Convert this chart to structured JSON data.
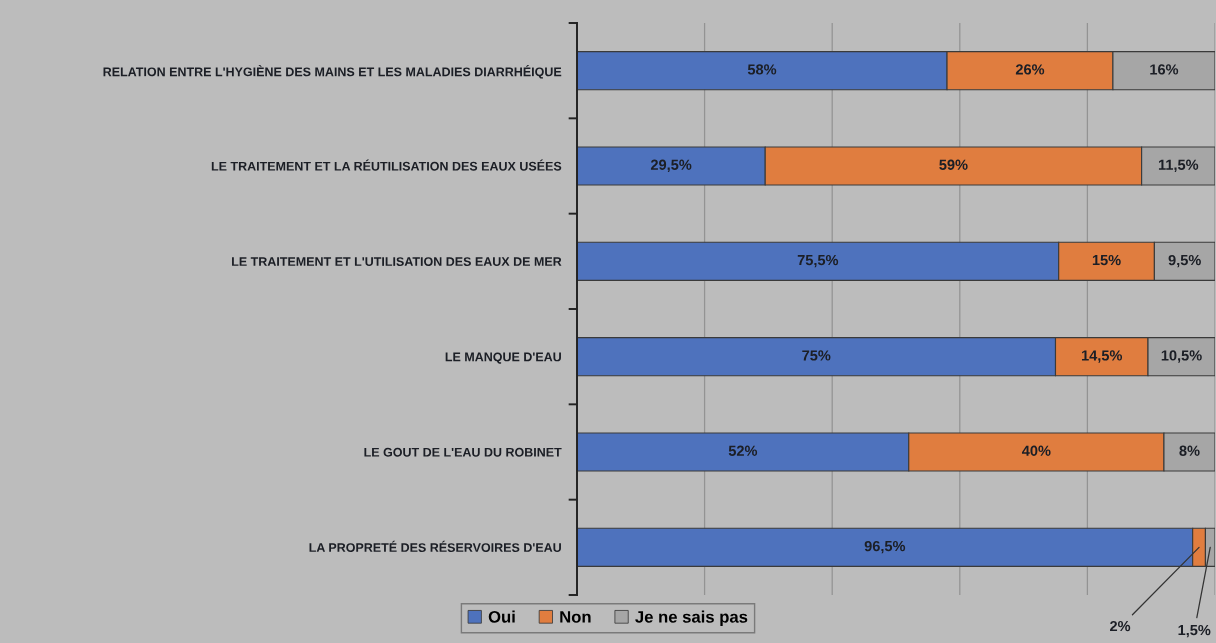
{
  "chart_data": {
    "type": "bar",
    "orientation": "horizontal",
    "stacked": true,
    "categories": [
      "RELATION ENTRE L'HYGIÈNE DES MAINS ET LES MALADIES DIARRHÉIQUE",
      "LE TRAITEMENT ET LA RÉUTILISATION DES EAUX USÉES",
      "LE TRAITEMENT ET L'UTILISATION DES EAUX DE MER",
      "LE MANQUE D'EAU",
      "LE GOUT DE L'EAU DU ROBINET",
      "LA PROPRETÉ DES RÉSERVOIRES D'EAU"
    ],
    "series": [
      {
        "name": "Oui",
        "color": "#4e72bd",
        "values": [
          58,
          29.5,
          75.5,
          75,
          52,
          96.5
        ],
        "value_labels": [
          "58%",
          "29,5%",
          "75,5%",
          "75%",
          "52%",
          "96,5%"
        ]
      },
      {
        "name": "Non",
        "color": "#e07d3f",
        "values": [
          26,
          59,
          15,
          14.5,
          40,
          2
        ],
        "value_labels": [
          "26%",
          "59%",
          "15%",
          "14,5%",
          "40%",
          "2%"
        ]
      },
      {
        "name": "Je ne sais pas",
        "color": "#a6a6a6",
        "values": [
          16,
          11.5,
          9.5,
          10.5,
          8,
          1.5
        ],
        "value_labels": [
          "16%",
          "11,5%",
          "9,5%",
          "10,5%",
          "8%",
          "1,5%"
        ]
      }
    ],
    "xlim": [
      0,
      100
    ],
    "xticks": [
      {
        "value": 0,
        "label": null
      },
      {
        "value": 20,
        "label": null
      },
      {
        "value": 40,
        "label": null
      },
      {
        "value": 60,
        "label": null
      },
      {
        "value": 80,
        "label": null
      },
      {
        "value": 100,
        "label": null
      }
    ],
    "grid": "x",
    "legend": "bottom",
    "tick_labels": "y"
  }
}
